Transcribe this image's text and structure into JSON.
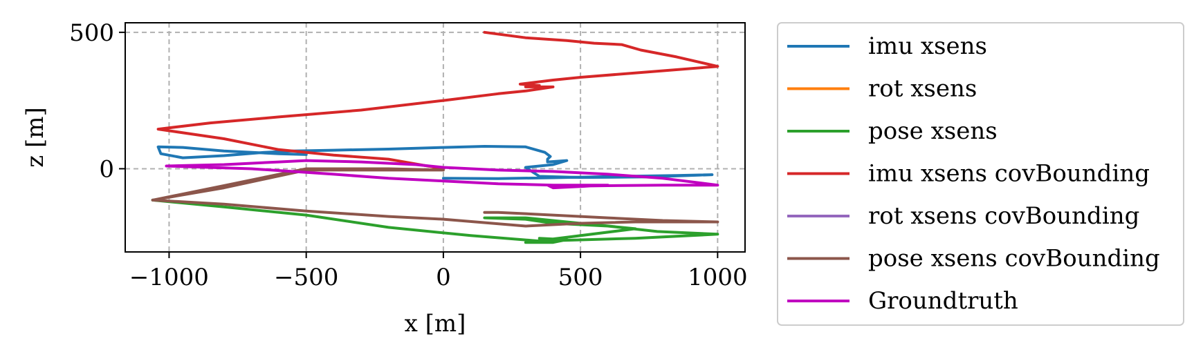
{
  "chart_data": {
    "type": "line",
    "xlabel": "x [m]",
    "ylabel": "z [m]",
    "xlim": [
      -1160,
      1100
    ],
    "ylim": [
      -305,
      535
    ],
    "xticks": [
      {
        "value": -1000,
        "label": "−1000"
      },
      {
        "value": -500,
        "label": "−500"
      },
      {
        "value": 0,
        "label": "0"
      },
      {
        "value": 500,
        "label": "500"
      },
      {
        "value": 1000,
        "label": "1000"
      }
    ],
    "yticks": [
      {
        "value": 0,
        "label": "0"
      },
      {
        "value": 500,
        "label": "500"
      }
    ],
    "grid": true,
    "legend_position": "outside-right",
    "series": [
      {
        "name": "imu xsens",
        "color": "#1f77b4",
        "points": [
          [
            0,
            -35
          ],
          [
            200,
            -36
          ],
          [
            400,
            -33
          ],
          [
            650,
            -28
          ],
          [
            850,
            -25
          ],
          [
            980,
            -22
          ],
          [
            750,
            -30
          ],
          [
            500,
            -32
          ],
          [
            350,
            -28
          ],
          [
            300,
            5
          ],
          [
            400,
            15
          ],
          [
            450,
            30
          ],
          [
            380,
            25
          ],
          [
            380,
            35
          ],
          [
            390,
            45
          ],
          [
            370,
            60
          ],
          [
            300,
            80
          ],
          [
            150,
            82
          ],
          [
            0,
            78
          ],
          [
            -200,
            72
          ],
          [
            -400,
            68
          ],
          [
            -550,
            65
          ],
          [
            -650,
            60
          ],
          [
            -800,
            48
          ],
          [
            -950,
            40
          ],
          [
            -1030,
            55
          ],
          [
            -1040,
            80
          ],
          [
            -950,
            78
          ],
          [
            -800,
            65
          ],
          [
            -600,
            55
          ],
          [
            -500,
            52
          ]
        ]
      },
      {
        "name": "rot xsens",
        "color": "#ff7f0e",
        "points": []
      },
      {
        "name": "pose xsens",
        "color": "#2ca02c",
        "points": [
          [
            -1060,
            -115
          ],
          [
            -800,
            -140
          ],
          [
            -500,
            -170
          ],
          [
            -200,
            -215
          ],
          [
            100,
            -245
          ],
          [
            350,
            -265
          ],
          [
            700,
            -255
          ],
          [
            1000,
            -240
          ],
          [
            780,
            -230
          ],
          [
            600,
            -210
          ],
          [
            400,
            -200
          ],
          [
            300,
            -185
          ],
          [
            150,
            -180
          ],
          [
            300,
            -180
          ],
          [
            500,
            -200
          ],
          [
            700,
            -220
          ],
          [
            300,
            -270
          ],
          [
            400,
            -270
          ],
          [
            450,
            -260
          ],
          [
            350,
            -255
          ]
        ]
      },
      {
        "name": "imu xsens covBounding",
        "color": "#d62728",
        "points": [
          [
            150,
            500
          ],
          [
            300,
            480
          ],
          [
            450,
            470
          ],
          [
            550,
            460
          ],
          [
            650,
            455
          ],
          [
            720,
            435
          ],
          [
            850,
            410
          ],
          [
            1000,
            375
          ],
          [
            750,
            355
          ],
          [
            500,
            335
          ],
          [
            400,
            325
          ],
          [
            280,
            310
          ],
          [
            350,
            305
          ],
          [
            300,
            300
          ],
          [
            400,
            300
          ],
          [
            300,
            285
          ],
          [
            200,
            275
          ],
          [
            0,
            250
          ],
          [
            -300,
            215
          ],
          [
            -600,
            190
          ],
          [
            -850,
            168
          ],
          [
            -1040,
            145
          ],
          [
            -800,
            110
          ],
          [
            -600,
            70
          ],
          [
            -400,
            50
          ],
          [
            -200,
            35
          ],
          [
            0,
            0
          ]
        ]
      },
      {
        "name": "rot xsens covBounding",
        "color": "#9467bd",
        "points": []
      },
      {
        "name": "pose xsens covBounding",
        "color": "#8c564b",
        "points": [
          [
            -1060,
            -115
          ],
          [
            -800,
            -62
          ],
          [
            -550,
            -10
          ],
          [
            -500,
            0
          ],
          [
            -400,
            0
          ],
          [
            -200,
            0
          ],
          [
            0,
            -5
          ],
          [
            -200,
            -5
          ],
          [
            -500,
            -5
          ],
          [
            -800,
            -70
          ],
          [
            -1060,
            -115
          ],
          [
            -800,
            -130
          ],
          [
            -500,
            -155
          ],
          [
            -200,
            -175
          ],
          [
            0,
            -185
          ],
          [
            300,
            -210
          ],
          [
            500,
            -200
          ],
          [
            700,
            -195
          ],
          [
            1000,
            -195
          ],
          [
            800,
            -190
          ],
          [
            600,
            -180
          ],
          [
            400,
            -170
          ],
          [
            200,
            -160
          ],
          [
            150,
            -160
          ]
        ]
      },
      {
        "name": "Groundtruth",
        "color": "#c000c0",
        "points": [
          [
            -1010,
            10
          ],
          [
            -800,
            15
          ],
          [
            -600,
            25
          ],
          [
            -500,
            30
          ],
          [
            -300,
            25
          ],
          [
            -100,
            15
          ],
          [
            0,
            5
          ],
          [
            200,
            -5
          ],
          [
            400,
            -10
          ],
          [
            600,
            -20
          ],
          [
            800,
            -35
          ],
          [
            1000,
            -60
          ],
          [
            800,
            -60
          ],
          [
            600,
            -62
          ],
          [
            400,
            -65
          ],
          [
            380,
            -60
          ],
          [
            400,
            -70
          ],
          [
            600,
            -60
          ],
          [
            400,
            -60
          ],
          [
            200,
            -55
          ],
          [
            0,
            -45
          ],
          [
            -200,
            -35
          ],
          [
            -400,
            -20
          ],
          [
            -550,
            -10
          ],
          [
            -700,
            0
          ],
          [
            -1010,
            10
          ]
        ]
      }
    ]
  }
}
